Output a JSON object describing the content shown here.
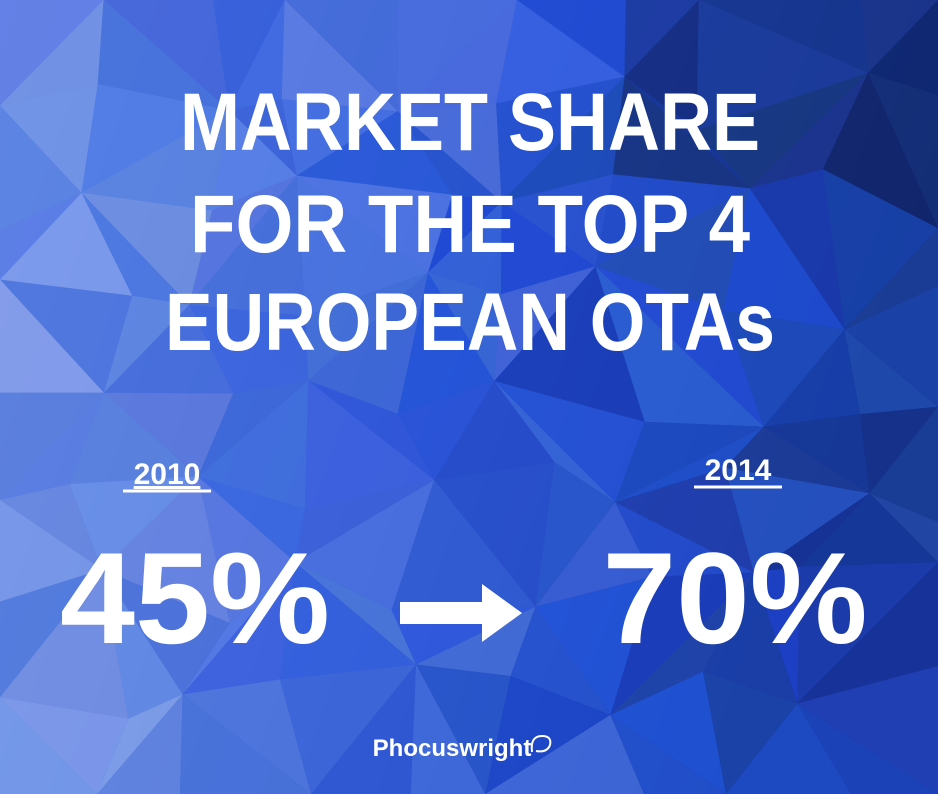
{
  "title": {
    "lines": [
      "MARKET SHARE",
      "FOR THE TOP 4",
      "EUROPEAN OTAs"
    ]
  },
  "comparison": {
    "from": {
      "year": "2010",
      "value": "45%"
    },
    "to": {
      "year": "2014",
      "value": "70%"
    }
  },
  "footer": {
    "brand": "Phocuswright"
  }
}
